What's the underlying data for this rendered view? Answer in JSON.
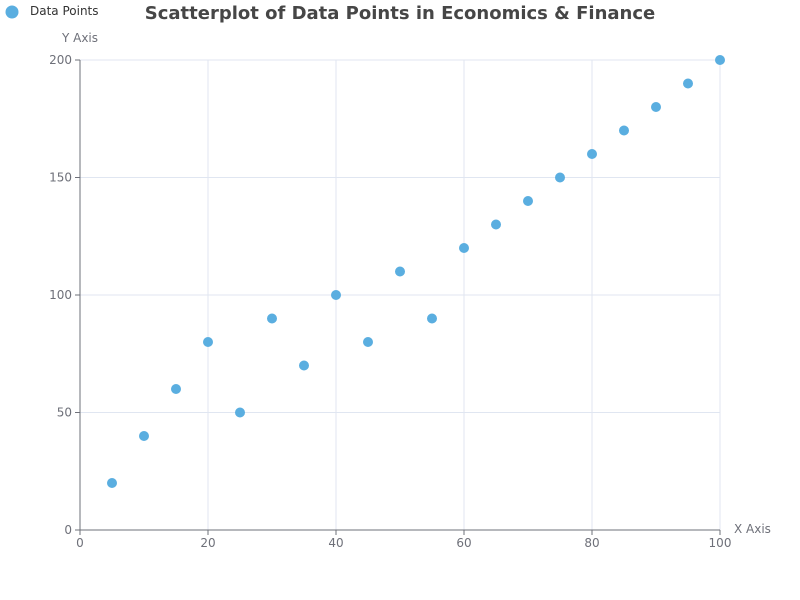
{
  "chart_data": {
    "type": "scatter",
    "title": "Scatterplot of Data Points in Economics & Finance",
    "xlabel": "X Axis",
    "ylabel": "Y Axis",
    "xlim": [
      0,
      100
    ],
    "ylim": [
      0,
      200
    ],
    "x_ticks": [
      "0",
      "20",
      "40",
      "60",
      "80",
      "100"
    ],
    "y_ticks": [
      "0",
      "50",
      "100",
      "150",
      "200"
    ],
    "grid": true,
    "legend_position": "top-left",
    "series": [
      {
        "name": "Data Points",
        "color": "#5aaee0",
        "points": [
          [
            5,
            20
          ],
          [
            10,
            40
          ],
          [
            15,
            60
          ],
          [
            20,
            80
          ],
          [
            25,
            50
          ],
          [
            30,
            90
          ],
          [
            35,
            70
          ],
          [
            40,
            100
          ],
          [
            45,
            80
          ],
          [
            50,
            110
          ],
          [
            55,
            90
          ],
          [
            60,
            120
          ],
          [
            65,
            130
          ],
          [
            70,
            140
          ],
          [
            75,
            150
          ],
          [
            80,
            160
          ],
          [
            85,
            170
          ],
          [
            90,
            180
          ],
          [
            95,
            190
          ],
          [
            100,
            200
          ]
        ]
      }
    ]
  }
}
